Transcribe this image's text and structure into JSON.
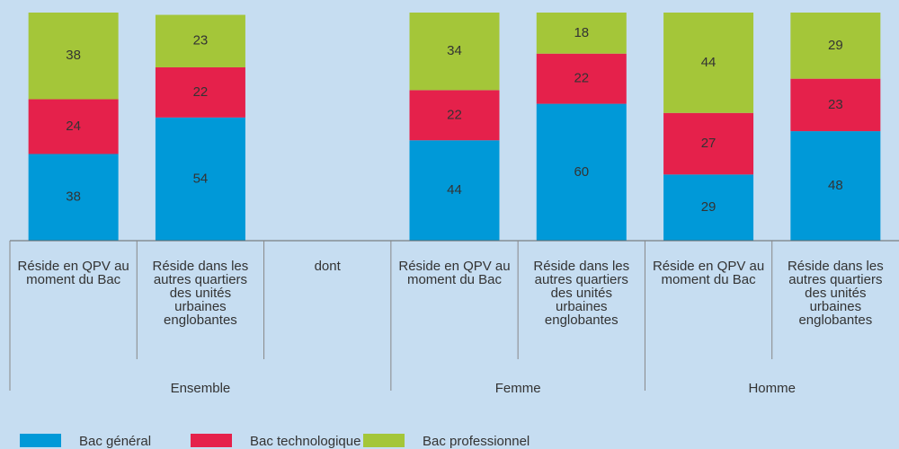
{
  "chart_data": {
    "type": "stacked_bar",
    "categories": [
      "Réside en QPV au moment du Bac",
      "Réside dans les autres quartiers des unités urbaines englobantes",
      "dont",
      "Réside en QPV au moment du Bac",
      "Réside dans les autres quartiers des unités urbaines englobantes",
      "Réside en QPV au moment du Bac",
      "Réside dans les autres quartiers des unités urbaines englobantes"
    ],
    "category_groups": [
      "Ensemble",
      "Ensemble",
      "Ensemble",
      "Femme",
      "Femme",
      "Homme",
      "Homme"
    ],
    "series": [
      {
        "name": "Bac général",
        "color": "#0099d8",
        "values": [
          38,
          54,
          null,
          44,
          60,
          29,
          48
        ]
      },
      {
        "name": "Bac technologique",
        "color": "#e5214b",
        "values": [
          24,
          22,
          null,
          22,
          22,
          27,
          23
        ]
      },
      {
        "name": "Bac professionnel",
        "color": "#a4c639",
        "values": [
          38,
          23,
          null,
          34,
          18,
          44,
          29
        ]
      }
    ]
  }
}
